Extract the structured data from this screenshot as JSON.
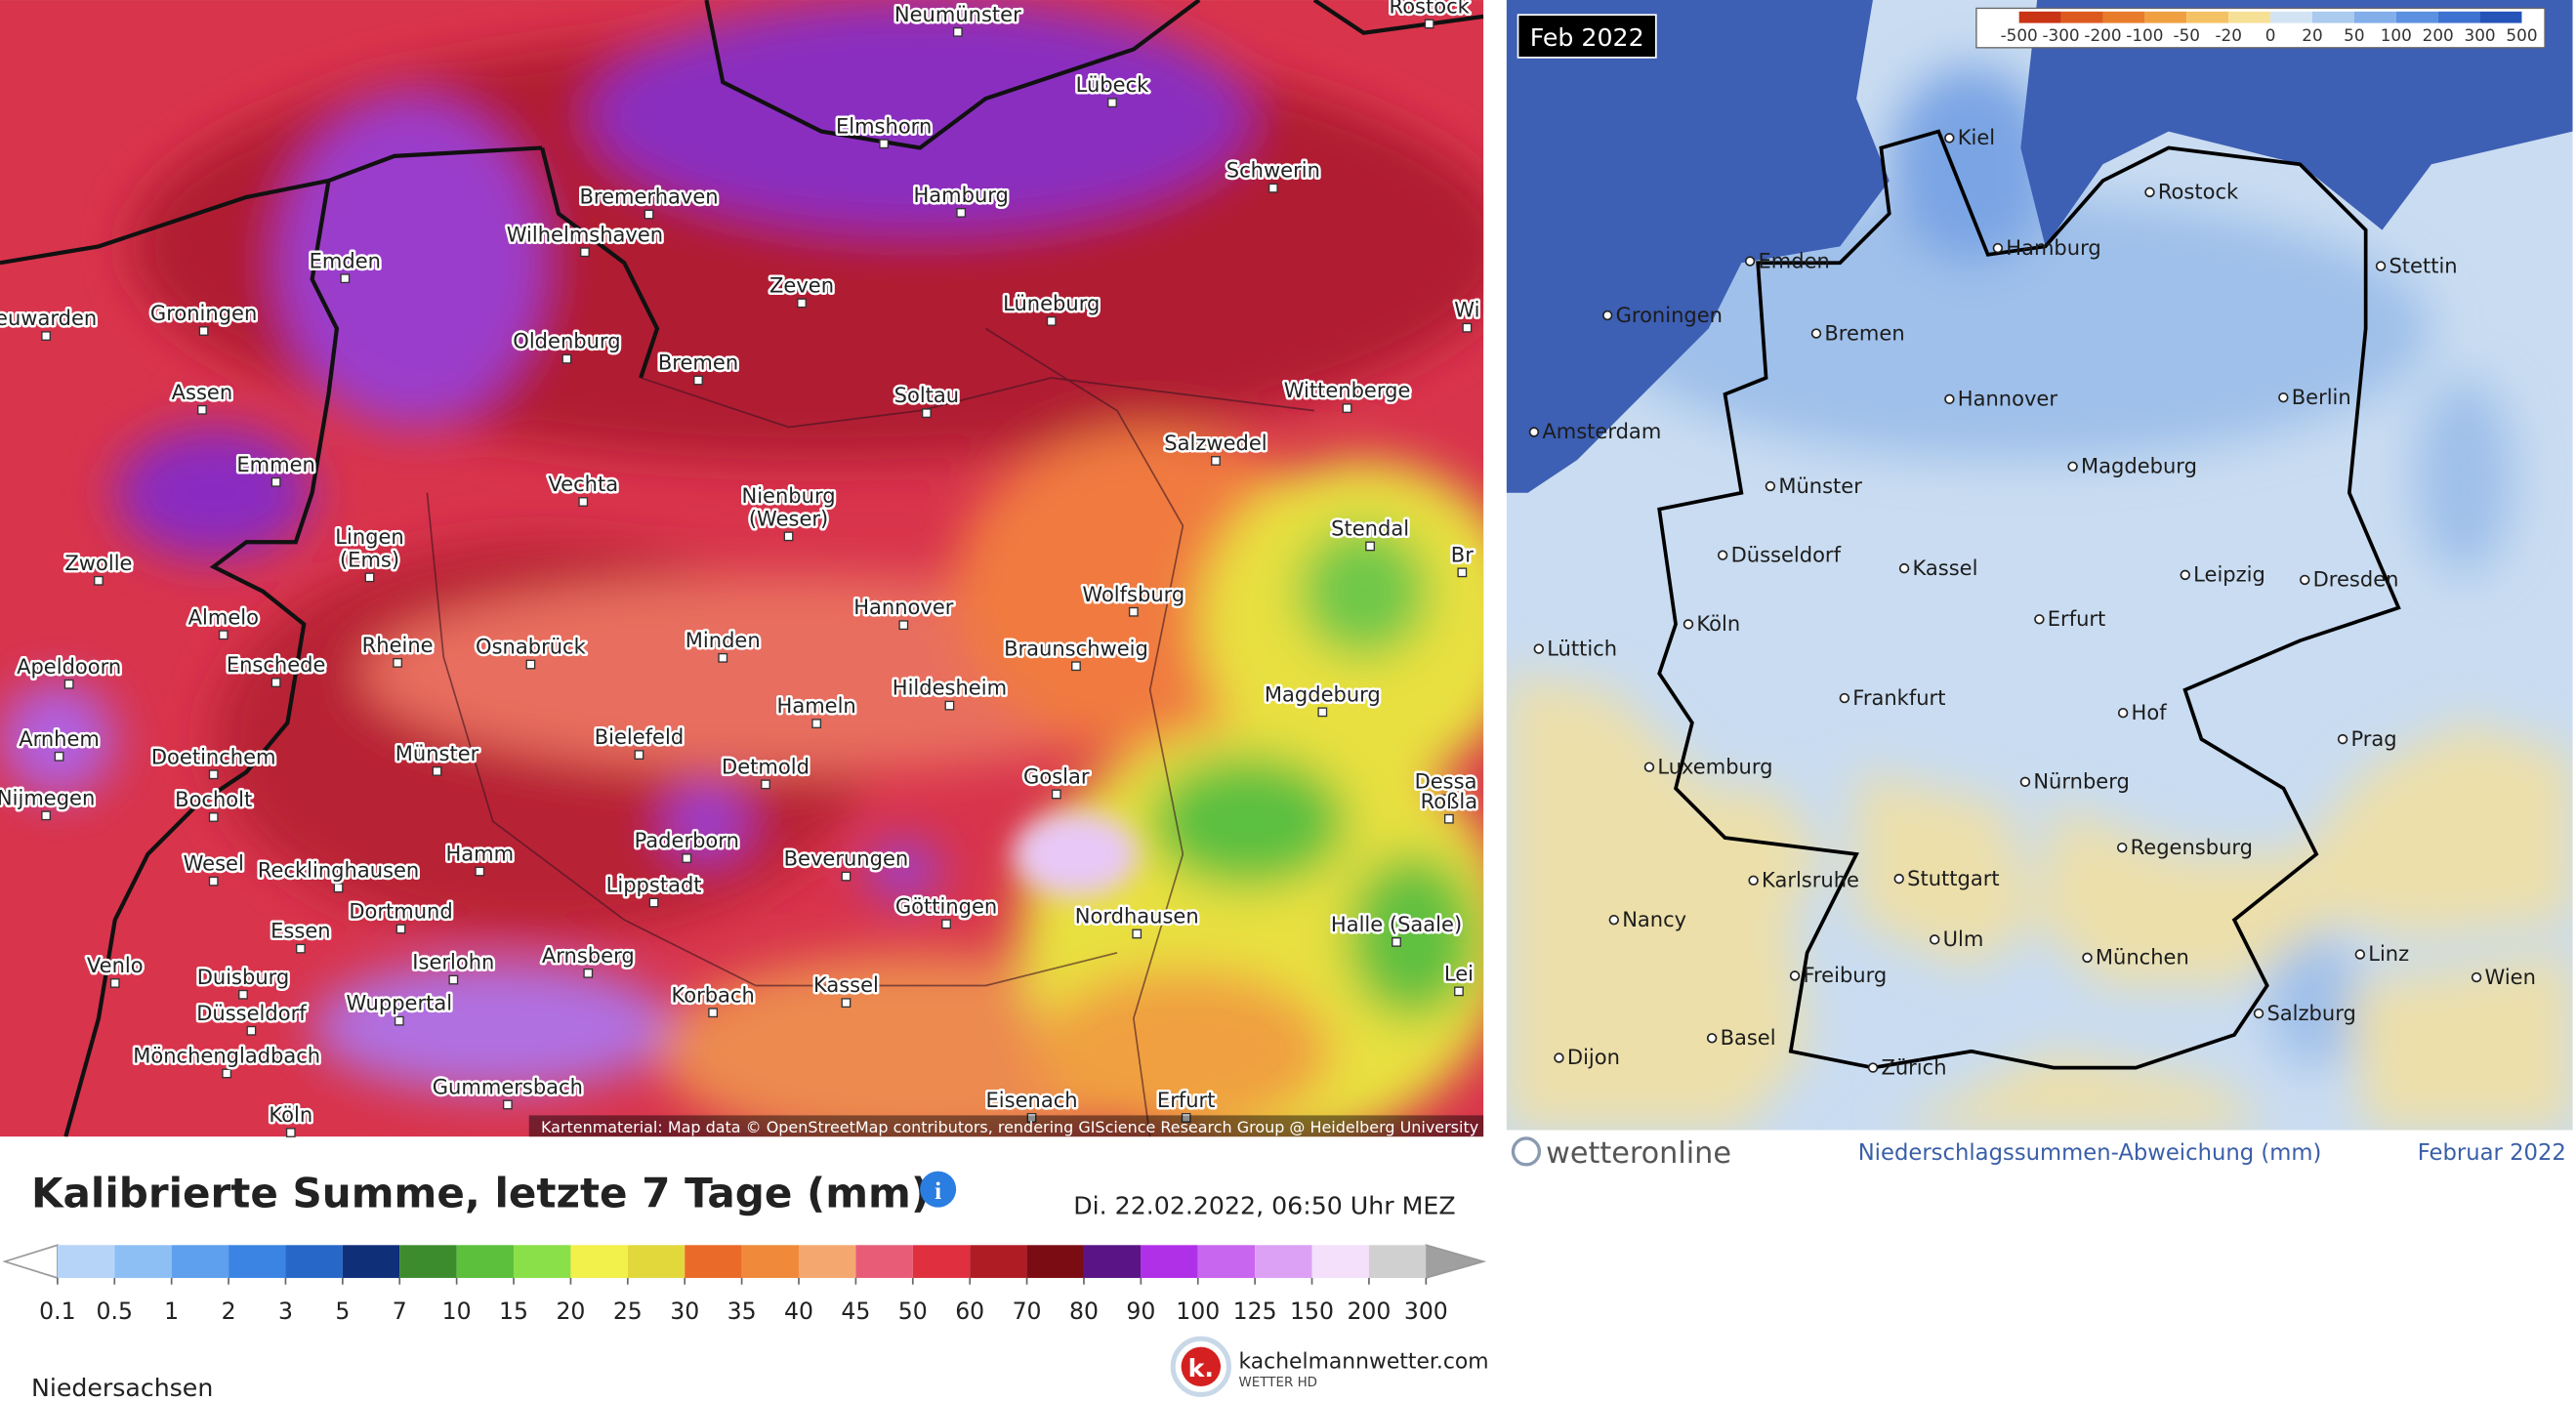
{
  "left_map": {
    "title": "Kalibrierte Summe, letzte 7 Tage (mm)",
    "timestamp": "Di. 22.02.2022, 06:50 Uhr MEZ",
    "region": "Niedersachsen",
    "brand": "kachelmannwetter.com",
    "brand_sub": "WETTER HD",
    "attribution": "Kartenmaterial: Map data © OpenStreetMap contributors, rendering GIScience Research Group @ Heidelberg University",
    "cities": [
      "Neumünster",
      "Rostock",
      "Lübeck",
      "Elmshorn",
      "Schwerin",
      "Bremerhaven",
      "Hamburg",
      "Wilhelmshaven",
      "Emden",
      "Zeven",
      "Lüneburg",
      "euwarden",
      "Groningen",
      "Oldenburg",
      "Bremen",
      "Soltau",
      "Wittenberge",
      "Assen",
      "Salzwedel",
      "Emmen",
      "Vechta",
      [
        "Nienburg",
        "(Weser)"
      ],
      "Stendal",
      [
        "Lingen",
        "(Ems)"
      ],
      "Zwolle",
      "Hannover",
      "Wolfsburg",
      "Almelo",
      "Rheine",
      "Osnabrück",
      "Minden",
      "Braunschweig",
      "Apeldoorn",
      "Enschede",
      "Hildesheim",
      "Magdeburg",
      "Hameln",
      "Bielefeld",
      "Arnhem",
      "Doetinchem",
      "Münster",
      "Detmold",
      "Goslar",
      "Dessa",
      "Roßla",
      "Bocholt",
      "Nijmegen",
      "Paderborn",
      "Beverungen",
      "Hamm",
      "Wesel",
      "Recklinghausen",
      "Lippstadt",
      "Göttingen",
      "Nordhausen",
      "Dortmund",
      "Halle (Saale)",
      "Essen",
      "Iserlohn",
      "Arnsberg",
      "Venlo",
      "Duisburg",
      "Korbach",
      "Kassel",
      "Düsseldorf",
      "Wuppertal",
      "Lei",
      "Mönchengladbach",
      "Gummersbach",
      "Eisenach",
      "Erfurt",
      "Köln",
      "Wi",
      "Br"
    ],
    "legend": {
      "labels": [
        0.1,
        0.5,
        1,
        2,
        3,
        5,
        7,
        10,
        15,
        20,
        25,
        30,
        35,
        40,
        45,
        50,
        60,
        70,
        80,
        90,
        100,
        125,
        150,
        200,
        300
      ],
      "colors": [
        "#b6d4f8",
        "#8ebff4",
        "#5fa0ee",
        "#3c84e4",
        "#2767c8",
        "#0f2f78",
        "#3c8c2e",
        "#5cc03c",
        "#8ae048",
        "#f2f04a",
        "#e2d83c",
        "#ea6a2a",
        "#f08a3a",
        "#f4a870",
        "#e85c78",
        "#e03040",
        "#b01c24",
        "#7c0c14",
        "#5a1486",
        "#b030e8",
        "#c866f0",
        "#dca0f4",
        "#f4e0fa",
        "#d0d0d0"
      ]
    }
  },
  "right_map": {
    "badge": "Feb 2022",
    "cities": [
      "Kiel",
      "Rostock",
      "Hamburg",
      "Stettin",
      "Emden",
      "Groningen",
      "Bremen",
      "Hannover",
      "Berlin",
      "Amsterdam",
      "Magdeburg",
      "Münster",
      "Düsseldorf",
      "Kassel",
      "Leipzig",
      "Dresden",
      "Köln",
      "Erfurt",
      "Lüttich",
      "Frankfurt",
      "Hof",
      "Prag",
      "Luxemburg",
      "Nürnberg",
      "Regensburg",
      "Karlsruhe",
      "Stuttgart",
      "Nancy",
      "Ulm",
      "München",
      "Linz",
      "Wien",
      "Freiburg",
      "Salzburg",
      "Basel",
      "Zürich",
      "Dijon"
    ],
    "legend": {
      "labels": [
        -500,
        -300,
        -200,
        -100,
        -50,
        -20,
        0,
        20,
        50,
        100,
        200,
        300,
        500
      ],
      "colors": [
        "#c83414",
        "#dc5a1e",
        "#e87c2c",
        "#f0a040",
        "#f4c264",
        "#f6e096",
        "#d2e4f4",
        "#aacaee",
        "#82aeea",
        "#5c90e0",
        "#3e72d0",
        "#2454b8"
      ]
    },
    "brand": "wetteronline",
    "caption": "Niederschlagssummen-Abweichung (mm)",
    "date": "Februar 2022"
  }
}
